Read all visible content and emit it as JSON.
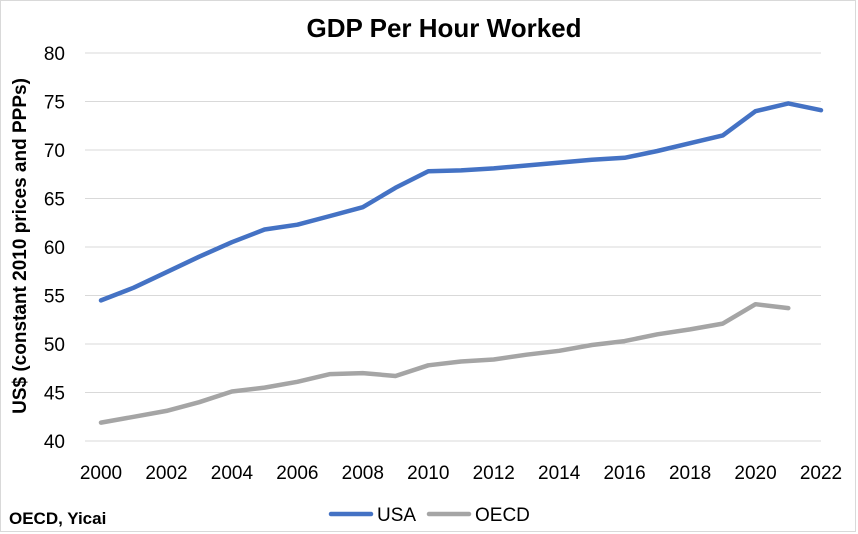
{
  "chart_data": {
    "type": "line",
    "title": "GDP Per Hour Worked",
    "ylabel": "US$ (constant 2010 prices and PPPs)",
    "xlabel": "",
    "xlim": [
      2000,
      2022
    ],
    "ylim": [
      40,
      80
    ],
    "x_ticks": [
      "2000",
      "2002",
      "2004",
      "2006",
      "2008",
      "2010",
      "2012",
      "2014",
      "2016",
      "2018",
      "2020",
      "2022"
    ],
    "y_ticks": [
      "40",
      "45",
      "50",
      "55",
      "60",
      "65",
      "70",
      "75",
      "80"
    ],
    "grid": "horizontal",
    "legend_position": "bottom",
    "series": [
      {
        "name": "USA",
        "color": "#4472c4",
        "x": [
          2000,
          2001,
          2002,
          2003,
          2004,
          2005,
          2006,
          2007,
          2008,
          2009,
          2010,
          2011,
          2012,
          2013,
          2014,
          2015,
          2016,
          2017,
          2018,
          2019,
          2020,
          2021,
          2022
        ],
        "values": [
          54.5,
          55.8,
          57.4,
          59.0,
          60.5,
          61.8,
          62.3,
          63.2,
          64.1,
          66.1,
          67.8,
          67.9,
          68.1,
          68.4,
          68.7,
          69.0,
          69.2,
          69.9,
          70.7,
          71.5,
          74.0,
          74.8,
          74.1
        ]
      },
      {
        "name": "OECD",
        "color": "#a5a5a5",
        "x": [
          2000,
          2001,
          2002,
          2003,
          2004,
          2005,
          2006,
          2007,
          2008,
          2009,
          2010,
          2011,
          2012,
          2013,
          2014,
          2015,
          2016,
          2017,
          2018,
          2019,
          2020,
          2021
        ],
        "values": [
          41.9,
          42.5,
          43.1,
          44.0,
          45.1,
          45.5,
          46.1,
          46.9,
          47.0,
          46.7,
          47.8,
          48.2,
          48.4,
          48.9,
          49.3,
          49.9,
          50.3,
          51.0,
          51.5,
          52.1,
          54.1,
          53.7
        ]
      }
    ]
  },
  "source": "OECD, Yicai"
}
